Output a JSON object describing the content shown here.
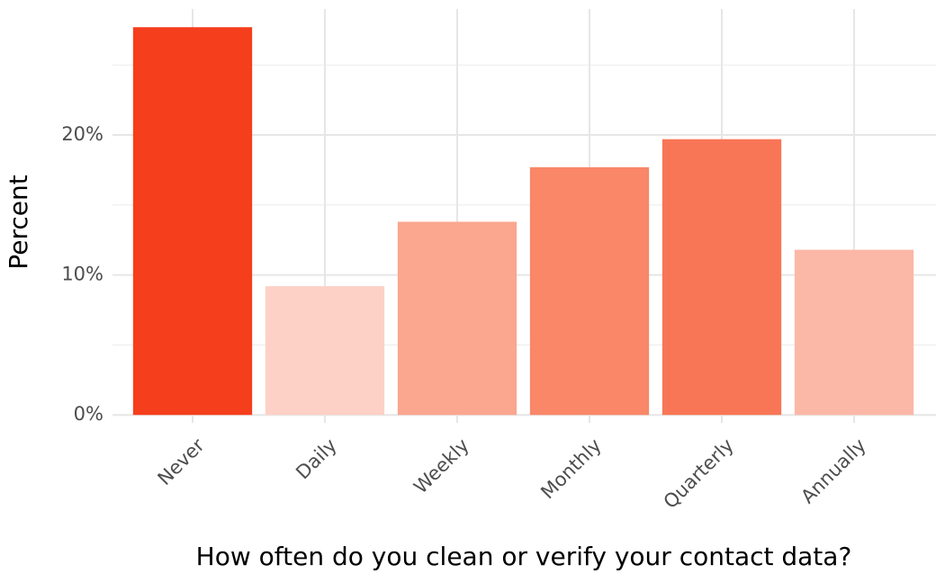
{
  "chart_data": {
    "type": "bar",
    "x_label": "How often do you clean or verify your contact data?",
    "y_label": "Percent",
    "categories": [
      "Never",
      "Daily",
      "Weekly",
      "Monthly",
      "Quarterly",
      "Annually"
    ],
    "values": [
      27.7,
      9.2,
      13.8,
      17.7,
      19.7,
      11.8
    ],
    "colors": [
      "#f53e1c",
      "#fdd1c6",
      "#fba68f",
      "#f98768",
      "#f87656",
      "#fcb8a6"
    ],
    "ylim": [
      -1.4,
      29
    ],
    "yticks": [
      {
        "value": 0,
        "label": "0%"
      },
      {
        "value": 10,
        "label": "10%"
      },
      {
        "value": 20,
        "label": "20%"
      }
    ],
    "minor_yticks": [
      5,
      15,
      25
    ],
    "grid": true
  }
}
